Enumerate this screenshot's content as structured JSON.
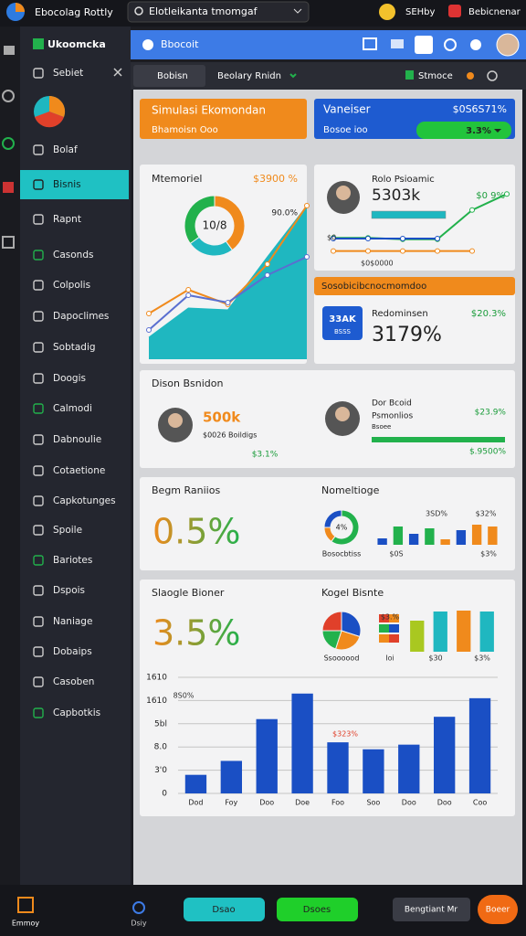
{
  "top_bar": {
    "app_name": "Ebocolag Rottly",
    "search": "Elotleikanta tmomgaf",
    "user": "SEHby",
    "profile": "Bebicnenar"
  },
  "sidebar": {
    "title": "Ukoomcka",
    "items": [
      "Sebiet",
      "Bolaf",
      "Bisnis",
      "Rapnt",
      "Casonds",
      "Colpolis",
      "Dapoclimes",
      "Sobtadig",
      "Doogis",
      "Calmodi",
      "Dabnoulie",
      "Cotaetione",
      "Capkotunges",
      "Spoile",
      "Bariotes",
      "Dspois",
      "Naniage",
      "Dobaips",
      "Casoben",
      "Capbotkis"
    ],
    "active": "Bisnis"
  },
  "header": {
    "title": "Bbocoit"
  },
  "tabs": {
    "items": [
      "Bobisn",
      "Beolary Rnidn"
    ],
    "right": "Stmoce"
  },
  "cards": {
    "sim": {
      "title": "Simulasi Ekomondan",
      "subtitle": "Bhamoisn Ooo"
    },
    "van": {
      "title": "Vaneiser",
      "value": "$0S6S71%",
      "subtitle": "Bosoe ioo",
      "badge": "3.3%"
    },
    "mem": {
      "title": "Mtemoriel",
      "value": "$3900 %"
    },
    "rolo": {
      "name": "Rolo Psioamic",
      "value": "5303k",
      "change": "$0 9%"
    },
    "soso": {
      "title": "Sosobicibcnocmomdoo",
      "tile_top": "33AK",
      "tile_bottom": "BSSS",
      "label": "Redominsen",
      "change": "$20.3%",
      "value": "3179%"
    },
    "dison": {
      "title": "Dison Bsnidon",
      "value": "500k",
      "caption": "$0026 Boildigs",
      "change": "$3.1%",
      "name": "Dor Bcoid",
      "role": "Psmonlios",
      "tag": "Bsoee",
      "change2": "$23.9%",
      "total": "$.9500%"
    },
    "begm": {
      "title": "Begm Raniios",
      "value": "0.5%",
      "side_title": "Nomeltioge",
      "caption": "Bosocbtiss"
    },
    "slaogle": {
      "title": "Slaogle Bioner",
      "value": "3.5%",
      "side_title": "Kogel Bisnte",
      "caption": "Ssoooood"
    }
  },
  "bottom_bar": {
    "label": "Emmoy",
    "center": "Dsiy",
    "buttons": [
      "Dsao",
      "Dsoes",
      "Bengtiant Mr",
      "Boeer"
    ]
  },
  "chart_data": [
    {
      "type": "donut",
      "center_label": "10/8",
      "values": [
        40,
        25,
        35
      ],
      "colors": [
        "#f08a1c",
        "#1fb7c0",
        "#22b14c"
      ]
    },
    {
      "type": "area",
      "annotation": "90.0%",
      "ylim": [
        0,
        100
      ],
      "series": [
        {
          "color": "#1fb7c0",
          "fill": true,
          "values": [
            12,
            28,
            27,
            56,
            84
          ]
        },
        {
          "color": "#f08a1c",
          "values": [
            25,
            38,
            30,
            52,
            84
          ]
        },
        {
          "color": "#5a6fd0",
          "values": [
            16,
            35,
            31,
            46,
            56
          ]
        }
      ]
    },
    {
      "type": "donut",
      "center_label": "4%",
      "values": [
        60,
        15,
        25
      ],
      "colors": [
        "#22b14c",
        "#f08a1c",
        "#1a4fc4"
      ]
    },
    {
      "type": "bar",
      "ylim": [
        0,
        30
      ],
      "values": [
        7,
        20,
        12,
        18,
        6,
        16,
        22,
        20
      ],
      "colors": [
        "#1a4fc4",
        "#22b14c",
        "#1a4fc4",
        "#22b14c",
        "#f08a1c",
        "#1a4fc4",
        "#f08a1c",
        "#f08a1c"
      ],
      "annotations": [
        "3SD%",
        "$32%",
        "$0S",
        "$3%"
      ]
    },
    {
      "type": "pie",
      "values": [
        30,
        25,
        20,
        25
      ],
      "colors": [
        "#1a4fc4",
        "#f08a1c",
        "#22b14c",
        "#e0402a"
      ],
      "annotations": [
        "Ssoooood"
      ]
    },
    {
      "type": "bar",
      "ylim": [
        0,
        50
      ],
      "values": [
        34,
        44,
        45,
        44
      ],
      "colors": [
        "#a9c820",
        "#1fb7c0",
        "#f08a1c",
        "#1fb7c0"
      ],
      "annotations": [
        "$3.%",
        "Ioi",
        "$30",
        "$3%"
      ]
    },
    {
      "type": "bar",
      "categories": [
        "Dod",
        "Foy",
        "Doo",
        "Doe",
        "Foo",
        "Soo",
        "Doo",
        "Doo",
        "Coo"
      ],
      "values": [
        0.8,
        1.4,
        3.2,
        4.3,
        2.2,
        1.9,
        2.1,
        3.3,
        4.1
      ],
      "color": "#1a4fc4",
      "ylim": [
        0,
        5
      ],
      "yticks": [
        0,
        {
          "value": 1,
          "label": "3'0"
        },
        {
          "value": 2,
          "label": "8.0"
        },
        {
          "value": 3,
          "label": "5bl"
        },
        {
          "value": 4,
          "label": "1610"
        },
        {
          "value": 5,
          "label": "1610"
        }
      ],
      "grid": true,
      "annotations": [
        "8S0%",
        "$323%"
      ]
    },
    {
      "type": "line",
      "ylim": [
        0,
        100
      ],
      "series": [
        {
          "color": "#22b14c",
          "values": [
            31,
            31,
            29,
            29,
            69,
            91
          ]
        },
        {
          "color": "#1a4fc4",
          "values": [
            30,
            30,
            30,
            30,
            null,
            null
          ]
        },
        {
          "color": "#f08a1c",
          "values": [
            13,
            13,
            13,
            13,
            13,
            null
          ]
        }
      ],
      "annotations": [
        "$0",
        "$0$0000"
      ]
    }
  ]
}
